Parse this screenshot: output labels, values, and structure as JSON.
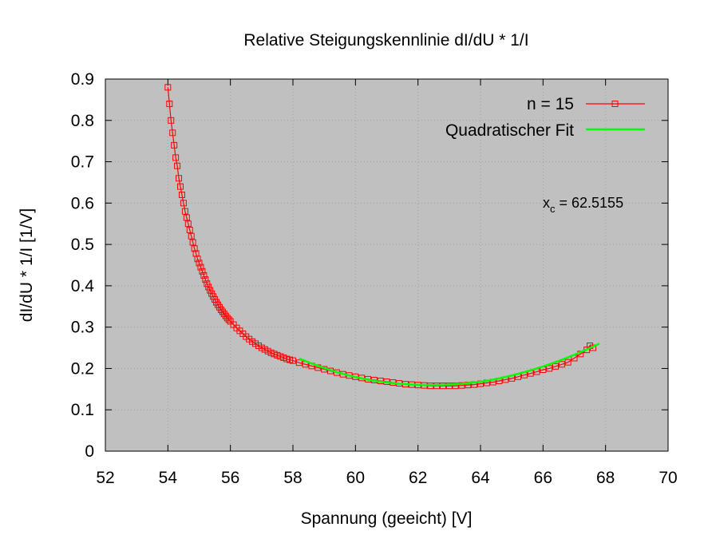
{
  "chart_data": {
    "type": "scatter",
    "title": "Relative Steigungskennlinie dI/dU * 1/I",
    "xlabel": "Spannung (geeicht) [V]",
    "ylabel": "dI/dU * 1/I [1/V]",
    "xlim": [
      52,
      70
    ],
    "ylim": [
      0,
      0.9
    ],
    "x_ticks": [
      52,
      54,
      56,
      58,
      60,
      62,
      64,
      66,
      68,
      70
    ],
    "y_ticks": [
      0,
      0.1,
      0.2,
      0.3,
      0.4,
      0.5,
      0.6,
      0.7,
      0.8,
      0.9
    ],
    "grid": true,
    "background_color": "#c0c0c0",
    "legend_position": "top-right",
    "annotation": {
      "prefix": "x",
      "subscript": "c",
      "text": " = 62.5155"
    },
    "series": [
      {
        "name": "n = 15",
        "color": "#ff0000",
        "marker": "open-square",
        "x": [
          54.0,
          54.05,
          54.1,
          54.15,
          54.2,
          54.25,
          54.3,
          54.35,
          54.4,
          54.45,
          54.5,
          54.55,
          54.6,
          54.65,
          54.7,
          54.75,
          54.8,
          54.85,
          54.9,
          54.95,
          55.0,
          55.05,
          55.1,
          55.15,
          55.2,
          55.25,
          55.3,
          55.35,
          55.4,
          55.45,
          55.5,
          55.55,
          55.6,
          55.65,
          55.7,
          55.75,
          55.8,
          55.85,
          55.9,
          55.95,
          56.0,
          56.1,
          56.2,
          56.3,
          56.4,
          56.5,
          56.6,
          56.7,
          56.8,
          56.9,
          57.0,
          57.1,
          57.2,
          57.3,
          57.4,
          57.5,
          57.6,
          57.7,
          57.8,
          57.9,
          58.0,
          58.2,
          58.4,
          58.6,
          58.8,
          59.0,
          59.2,
          59.4,
          59.6,
          59.8,
          60.0,
          60.2,
          60.4,
          60.6,
          60.8,
          61.0,
          61.2,
          61.4,
          61.6,
          61.8,
          62.0,
          62.2,
          62.4,
          62.6,
          62.8,
          63.0,
          63.2,
          63.4,
          63.6,
          63.8,
          64.0,
          64.2,
          64.4,
          64.6,
          64.8,
          65.0,
          65.2,
          65.4,
          65.6,
          65.8,
          66.0,
          66.2,
          66.4,
          66.6,
          66.8,
          67.0,
          67.2,
          67.4,
          67.5,
          67.6
        ],
        "y": [
          0.88,
          0.84,
          0.8,
          0.77,
          0.74,
          0.71,
          0.69,
          0.66,
          0.64,
          0.62,
          0.6,
          0.58,
          0.565,
          0.55,
          0.535,
          0.52,
          0.505,
          0.49,
          0.478,
          0.465,
          0.455,
          0.445,
          0.435,
          0.425,
          0.415,
          0.405,
          0.397,
          0.389,
          0.381,
          0.374,
          0.367,
          0.36,
          0.354,
          0.348,
          0.342,
          0.337,
          0.332,
          0.327,
          0.322,
          0.318,
          0.314,
          0.306,
          0.298,
          0.291,
          0.284,
          0.277,
          0.271,
          0.265,
          0.26,
          0.255,
          0.25,
          0.246,
          0.242,
          0.238,
          0.235,
          0.232,
          0.229,
          0.226,
          0.223,
          0.221,
          0.219,
          0.214,
          0.21,
          0.206,
          0.202,
          0.198,
          0.194,
          0.19,
          0.186,
          0.183,
          0.18,
          0.177,
          0.174,
          0.172,
          0.17,
          0.168,
          0.166,
          0.164,
          0.162,
          0.161,
          0.16,
          0.159,
          0.158,
          0.158,
          0.158,
          0.158,
          0.158,
          0.159,
          0.16,
          0.161,
          0.163,
          0.165,
          0.167,
          0.17,
          0.173,
          0.176,
          0.18,
          0.184,
          0.188,
          0.192,
          0.197,
          0.2,
          0.205,
          0.21,
          0.215,
          0.225,
          0.235,
          0.245,
          0.255,
          0.25
        ]
      },
      {
        "name": "Quadratischer Fit",
        "color": "#00ff00",
        "x": [
          58.2,
          58.6,
          59.0,
          59.4,
          59.8,
          60.2,
          60.6,
          61.0,
          61.4,
          61.8,
          62.2,
          62.6,
          63.0,
          63.4,
          63.8,
          64.2,
          64.6,
          65.0,
          65.4,
          65.8,
          66.2,
          66.6,
          67.0,
          67.4,
          67.8
        ],
        "y": [
          0.224,
          0.212,
          0.201,
          0.191,
          0.183,
          0.176,
          0.17,
          0.166,
          0.163,
          0.161,
          0.16,
          0.16,
          0.161,
          0.163,
          0.166,
          0.17,
          0.176,
          0.183,
          0.191,
          0.2,
          0.21,
          0.221,
          0.233,
          0.246,
          0.26
        ]
      }
    ]
  }
}
